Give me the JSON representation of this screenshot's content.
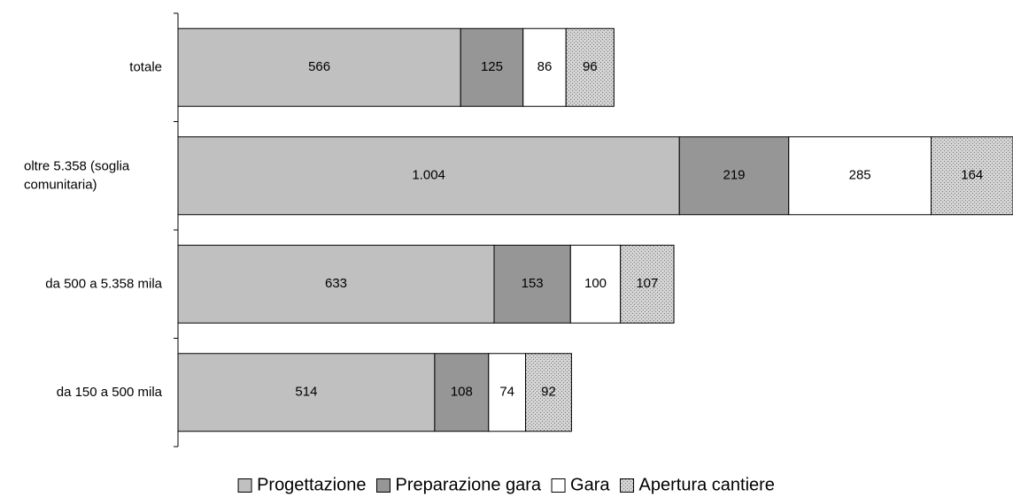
{
  "chart_data": {
    "type": "bar",
    "orientation": "horizontal",
    "stacked": true,
    "categories": [
      "totale",
      "oltre 5.358 (soglia comunitaria)",
      "da 500 a 5.358 mila",
      "da 150 a 500 mila"
    ],
    "category_label_lines": [
      [
        "totale"
      ],
      [
        "oltre 5.358 (soglia",
        "comunitaria)"
      ],
      [
        "da 500 a 5.358 mila"
      ],
      [
        "da 150 a 500 mila"
      ]
    ],
    "series": [
      {
        "name": "Progettazione",
        "values": [
          566,
          1004,
          633,
          514
        ],
        "value_labels": [
          "566",
          "1.004",
          "633",
          "514"
        ],
        "color": "#c0c0c0",
        "pattern": "solid"
      },
      {
        "name": "Preparazione gara",
        "values": [
          125,
          219,
          153,
          108
        ],
        "value_labels": [
          "125",
          "219",
          "153",
          "108"
        ],
        "color": "#969696",
        "pattern": "solid"
      },
      {
        "name": "Gara",
        "values": [
          86,
          285,
          100,
          74
        ],
        "value_labels": [
          "86",
          "285",
          "100",
          "74"
        ],
        "color": "#ffffff",
        "pattern": "solid"
      },
      {
        "name": "Apertura cantiere",
        "values": [
          96,
          164,
          107,
          92
        ],
        "value_labels": [
          "96",
          "164",
          "107",
          "92"
        ],
        "color": "#c8c8c8",
        "pattern": "dotted"
      }
    ],
    "xlim": [
      0,
      1672
    ],
    "legend": "bottom",
    "grid": false,
    "title": "",
    "xlabel": "",
    "ylabel": ""
  }
}
